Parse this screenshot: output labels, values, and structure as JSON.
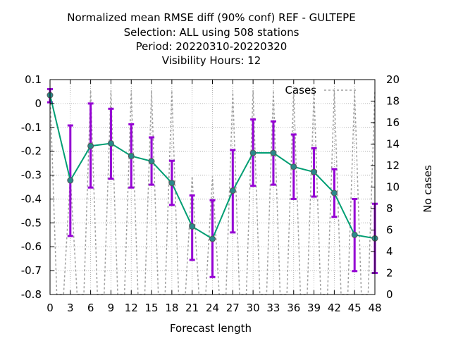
{
  "chart_data": {
    "type": "line",
    "title_lines": [
      "Normalized mean RMSE diff (90% conf) REF - GULTEPE",
      "Selection: ALL using   508 stations",
      "Period: 20220310-20220320",
      "Visibility   Hours:  12"
    ],
    "xlabel": "Forecast length",
    "ylabel": "",
    "y2label": "No cases",
    "legend": {
      "label": "Cases",
      "placement": "top-right"
    },
    "xlim": [
      0,
      48
    ],
    "ylim": [
      -0.8,
      0.1
    ],
    "y2lim": [
      0,
      20
    ],
    "x_ticks": [
      0,
      3,
      6,
      9,
      12,
      15,
      18,
      21,
      24,
      27,
      30,
      33,
      36,
      39,
      42,
      45,
      48
    ],
    "y_ticks": [
      0.1,
      0,
      -0.1,
      -0.2,
      -0.3,
      -0.4,
      -0.5,
      -0.6,
      -0.7,
      -0.8
    ],
    "y_tick_labels": [
      "0.1",
      "0",
      "-0.1",
      "-0.2",
      "-0.3",
      "-0.4",
      "-0.5",
      "-0.6",
      "-0.7",
      "-0.8"
    ],
    "y2_ticks": [
      0,
      2,
      4,
      6,
      8,
      10,
      12,
      14,
      16,
      18,
      20
    ],
    "grid": true,
    "x": [
      0,
      3,
      6,
      9,
      12,
      15,
      18,
      21,
      24,
      27,
      30,
      33,
      36,
      39,
      42,
      45,
      48
    ],
    "series": [
      {
        "values": [
          0.035,
          -0.322,
          -0.178,
          -0.167,
          -0.22,
          -0.242,
          -0.333,
          -0.515,
          -0.567,
          -0.365,
          -0.207,
          -0.207,
          -0.265,
          -0.287,
          -0.375,
          -0.55,
          -0.565
        ],
        "err_low": [
          0.005,
          -0.555,
          -0.352,
          -0.315,
          -0.352,
          -0.34,
          -0.425,
          -0.655,
          -0.727,
          -0.54,
          -0.345,
          -0.34,
          -0.4,
          -0.39,
          -0.475,
          -0.702,
          -0.71
        ],
        "err_high": [
          0.06,
          -0.092,
          0.0,
          -0.022,
          -0.087,
          -0.142,
          -0.24,
          -0.385,
          -0.405,
          -0.195,
          -0.067,
          -0.075,
          -0.13,
          -0.187,
          -0.275,
          -0.4,
          -0.42
        ],
        "line_color": "#009e73",
        "error_color": "#9400d3"
      }
    ],
    "cases": {
      "x": [
        0,
        1,
        2,
        3,
        4,
        5,
        6,
        7,
        8,
        9,
        10,
        11,
        12,
        13,
        14,
        15,
        16,
        17,
        18,
        19,
        20,
        21,
        22,
        23,
        24,
        25,
        26,
        27,
        28,
        29,
        30,
        31,
        32,
        33,
        34,
        35,
        36,
        37,
        38,
        39,
        40,
        41,
        42,
        43,
        44,
        45,
        46,
        47,
        48
      ],
      "values": [
        19,
        0,
        0,
        11,
        0,
        0,
        19,
        0,
        0,
        19,
        0,
        0,
        19,
        0,
        0,
        19,
        0,
        0,
        19,
        0,
        0,
        11,
        0,
        0,
        11,
        0,
        0,
        19,
        0,
        0,
        19,
        0,
        0,
        19,
        0,
        0,
        19,
        0,
        0,
        19,
        0,
        0,
        19,
        0,
        0,
        19,
        0,
        0,
        19
      ],
      "color": "#a0a0a0"
    }
  }
}
